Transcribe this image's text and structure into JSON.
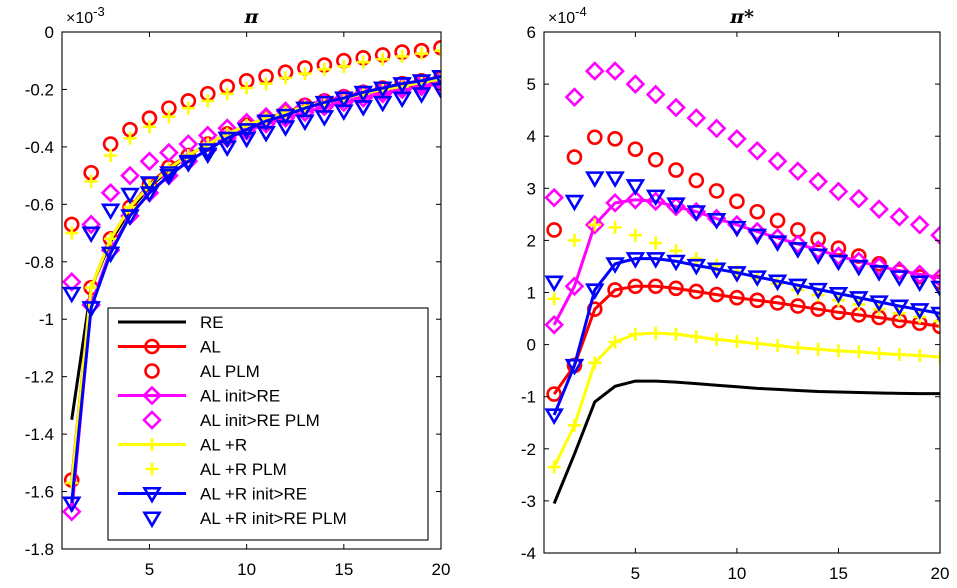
{
  "legend": [
    {
      "label": "RE",
      "color": "#000000",
      "marker": "none",
      "line": true
    },
    {
      "label": "AL",
      "color": "#ff0000",
      "marker": "circle",
      "line": true
    },
    {
      "label": "AL PLM",
      "color": "#ff0000",
      "marker": "circle",
      "line": false
    },
    {
      "label": "AL init>RE",
      "color": "#ff00ff",
      "marker": "diamond",
      "line": true
    },
    {
      "label": "AL init>RE PLM",
      "color": "#ff00ff",
      "marker": "diamond",
      "line": false
    },
    {
      "label": "AL +R",
      "color": "#ffff00",
      "marker": "plus",
      "line": true
    },
    {
      "label": "AL +R PLM",
      "color": "#ffff00",
      "marker": "plus",
      "line": false
    },
    {
      "label": "AL +R init>RE",
      "color": "#0000ff",
      "marker": "triangle-down",
      "line": true
    },
    {
      "label": "AL +R init>RE PLM",
      "color": "#0000ff",
      "marker": "triangle-down",
      "line": false
    }
  ],
  "chart_data": [
    {
      "type": "line",
      "title": "π",
      "exponent_label": "×10",
      "exponent_power": "-3",
      "x": [
        1,
        2,
        3,
        4,
        5,
        6,
        7,
        8,
        9,
        10,
        11,
        12,
        13,
        14,
        15,
        16,
        17,
        18,
        19,
        20
      ],
      "xlim": [
        0.5,
        20
      ],
      "ylim": [
        -1.8,
        0
      ],
      "xticks": [
        5,
        10,
        15,
        20
      ],
      "yticks": [
        0,
        -0.2,
        -0.4,
        -0.6,
        -0.8,
        -1,
        -1.2,
        -1.4,
        -1.6,
        -1.8
      ],
      "ytick_labels": [
        "0",
        "-0.2",
        "-0.4",
        "-0.6",
        "-0.8",
        "-1",
        "-1.2",
        "-1.4",
        "-1.6",
        "-1.8"
      ],
      "grid": false,
      "series": [
        {
          "name": "RE",
          "values": [
            -1.35,
            -0.89,
            -0.73,
            -0.62,
            -0.54,
            -0.48,
            -0.43,
            -0.39,
            -0.355,
            -0.325,
            -0.3,
            -0.28,
            -0.26,
            -0.245,
            -0.23,
            -0.215,
            -0.2,
            -0.19,
            -0.18,
            -0.17
          ]
        },
        {
          "name": "AL",
          "values": [
            -1.56,
            -0.89,
            -0.72,
            -0.61,
            -0.53,
            -0.47,
            -0.43,
            -0.39,
            -0.355,
            -0.325,
            -0.3,
            -0.28,
            -0.255,
            -0.24,
            -0.225,
            -0.21,
            -0.195,
            -0.18,
            -0.17,
            -0.16
          ]
        },
        {
          "name": "AL PLM",
          "values": [
            -0.67,
            -0.49,
            -0.39,
            -0.34,
            -0.3,
            -0.265,
            -0.24,
            -0.215,
            -0.19,
            -0.17,
            -0.155,
            -0.14,
            -0.125,
            -0.115,
            -0.1,
            -0.09,
            -0.08,
            -0.07,
            -0.065,
            -0.055
          ]
        },
        {
          "name": "AL init>RE",
          "values": [
            -1.67,
            -0.95,
            -0.76,
            -0.64,
            -0.56,
            -0.5,
            -0.45,
            -0.41,
            -0.37,
            -0.345,
            -0.32,
            -0.3,
            -0.28,
            -0.26,
            -0.245,
            -0.23,
            -0.215,
            -0.2,
            -0.19,
            -0.18
          ]
        },
        {
          "name": "AL init>RE PLM",
          "values": [
            -0.87,
            -0.67,
            -0.56,
            -0.5,
            -0.45,
            -0.42,
            -0.39,
            -0.36,
            -0.335,
            -0.315,
            -0.295,
            -0.275,
            -0.26,
            -0.245,
            -0.23,
            -0.215,
            -0.205,
            -0.195,
            -0.18,
            -0.17
          ]
        },
        {
          "name": "AL +R",
          "values": [
            -1.57,
            -0.89,
            -0.72,
            -0.61,
            -0.535,
            -0.475,
            -0.43,
            -0.39,
            -0.355,
            -0.325,
            -0.3,
            -0.28,
            -0.26,
            -0.245,
            -0.23,
            -0.215,
            -0.2,
            -0.19,
            -0.175,
            -0.165
          ]
        },
        {
          "name": "AL +R PLM",
          "values": [
            -0.7,
            -0.52,
            -0.43,
            -0.37,
            -0.33,
            -0.295,
            -0.265,
            -0.24,
            -0.215,
            -0.195,
            -0.18,
            -0.16,
            -0.145,
            -0.13,
            -0.12,
            -0.105,
            -0.095,
            -0.085,
            -0.075,
            -0.065
          ]
        },
        {
          "name": "AL +R init>RE",
          "values": [
            -1.64,
            -0.96,
            -0.77,
            -0.64,
            -0.56,
            -0.5,
            -0.45,
            -0.41,
            -0.37,
            -0.34,
            -0.31,
            -0.29,
            -0.265,
            -0.245,
            -0.23,
            -0.21,
            -0.195,
            -0.18,
            -0.17,
            -0.155
          ]
        },
        {
          "name": "AL +R init>RE PLM",
          "values": [
            -0.91,
            -0.7,
            -0.62,
            -0.565,
            -0.525,
            -0.49,
            -0.455,
            -0.425,
            -0.4,
            -0.37,
            -0.35,
            -0.33,
            -0.31,
            -0.295,
            -0.275,
            -0.26,
            -0.245,
            -0.23,
            -0.215,
            -0.2
          ]
        }
      ]
    },
    {
      "type": "line",
      "title": "π*",
      "exponent_label": "×10",
      "exponent_power": "-4",
      "x": [
        1,
        2,
        3,
        4,
        5,
        6,
        7,
        8,
        9,
        10,
        11,
        12,
        13,
        14,
        15,
        16,
        17,
        18,
        19,
        20
      ],
      "xlim": [
        0.5,
        20
      ],
      "ylim": [
        -4,
        6
      ],
      "xticks": [
        5,
        10,
        15,
        20
      ],
      "yticks": [
        6,
        5,
        4,
        3,
        2,
        1,
        0,
        -1,
        -2,
        -3,
        -4
      ],
      "ytick_labels": [
        "6",
        "5",
        "4",
        "3",
        "2",
        "1",
        "0",
        "-1",
        "-2",
        "-3",
        "-4"
      ],
      "grid": false,
      "series": [
        {
          "name": "RE",
          "values": [
            -3.05,
            -2.1,
            -1.1,
            -0.8,
            -0.7,
            -0.7,
            -0.72,
            -0.75,
            -0.78,
            -0.81,
            -0.84,
            -0.86,
            -0.88,
            -0.9,
            -0.91,
            -0.92,
            -0.93,
            -0.935,
            -0.94,
            -0.94
          ]
        },
        {
          "name": "AL",
          "values": [
            -0.95,
            -0.4,
            0.68,
            1.05,
            1.12,
            1.12,
            1.08,
            1.02,
            0.96,
            0.9,
            0.85,
            0.8,
            0.74,
            0.68,
            0.62,
            0.57,
            0.52,
            0.46,
            0.41,
            0.35
          ]
        },
        {
          "name": "AL PLM",
          "values": [
            2.2,
            3.6,
            3.98,
            3.95,
            3.75,
            3.55,
            3.35,
            3.15,
            2.95,
            2.75,
            2.55,
            2.38,
            2.2,
            2.02,
            1.85,
            1.7,
            1.55,
            1.4,
            1.3,
            1.2
          ]
        },
        {
          "name": "AL init>RE",
          "values": [
            0.38,
            1.12,
            2.3,
            2.72,
            2.78,
            2.75,
            2.65,
            2.55,
            2.42,
            2.3,
            2.17,
            2.05,
            1.93,
            1.82,
            1.7,
            1.6,
            1.5,
            1.42,
            1.35,
            1.28
          ]
        },
        {
          "name": "AL init>RE PLM",
          "values": [
            2.82,
            4.75,
            5.25,
            5.25,
            5.0,
            4.8,
            4.55,
            4.35,
            4.15,
            3.95,
            3.72,
            3.52,
            3.33,
            3.13,
            2.94,
            2.8,
            2.6,
            2.45,
            2.3,
            2.1
          ]
        },
        {
          "name": "AL +R",
          "values": [
            -2.35,
            -1.55,
            -0.35,
            0.05,
            0.2,
            0.22,
            0.2,
            0.15,
            0.1,
            0.06,
            0.02,
            -0.02,
            -0.06,
            -0.09,
            -0.12,
            -0.14,
            -0.17,
            -0.19,
            -0.21,
            -0.24
          ]
        },
        {
          "name": "AL +R PLM",
          "values": [
            0.88,
            2.0,
            2.3,
            2.25,
            2.1,
            1.95,
            1.8,
            1.65,
            1.52,
            1.4,
            1.28,
            1.17,
            1.05,
            0.95,
            0.85,
            0.77,
            0.68,
            0.6,
            0.53,
            0.45
          ]
        },
        {
          "name": "AL +R init>RE",
          "values": [
            -1.35,
            -0.4,
            1.05,
            1.55,
            1.65,
            1.65,
            1.6,
            1.52,
            1.45,
            1.38,
            1.3,
            1.22,
            1.14,
            1.06,
            0.98,
            0.9,
            0.82,
            0.74,
            0.67,
            0.6
          ]
        },
        {
          "name": "AL +R init>RE PLM",
          "values": [
            1.2,
            2.75,
            3.2,
            3.2,
            3.05,
            2.85,
            2.7,
            2.55,
            2.4,
            2.25,
            2.1,
            1.97,
            1.84,
            1.72,
            1.6,
            1.5,
            1.4,
            1.3,
            1.2,
            1.1
          ]
        }
      ]
    }
  ]
}
